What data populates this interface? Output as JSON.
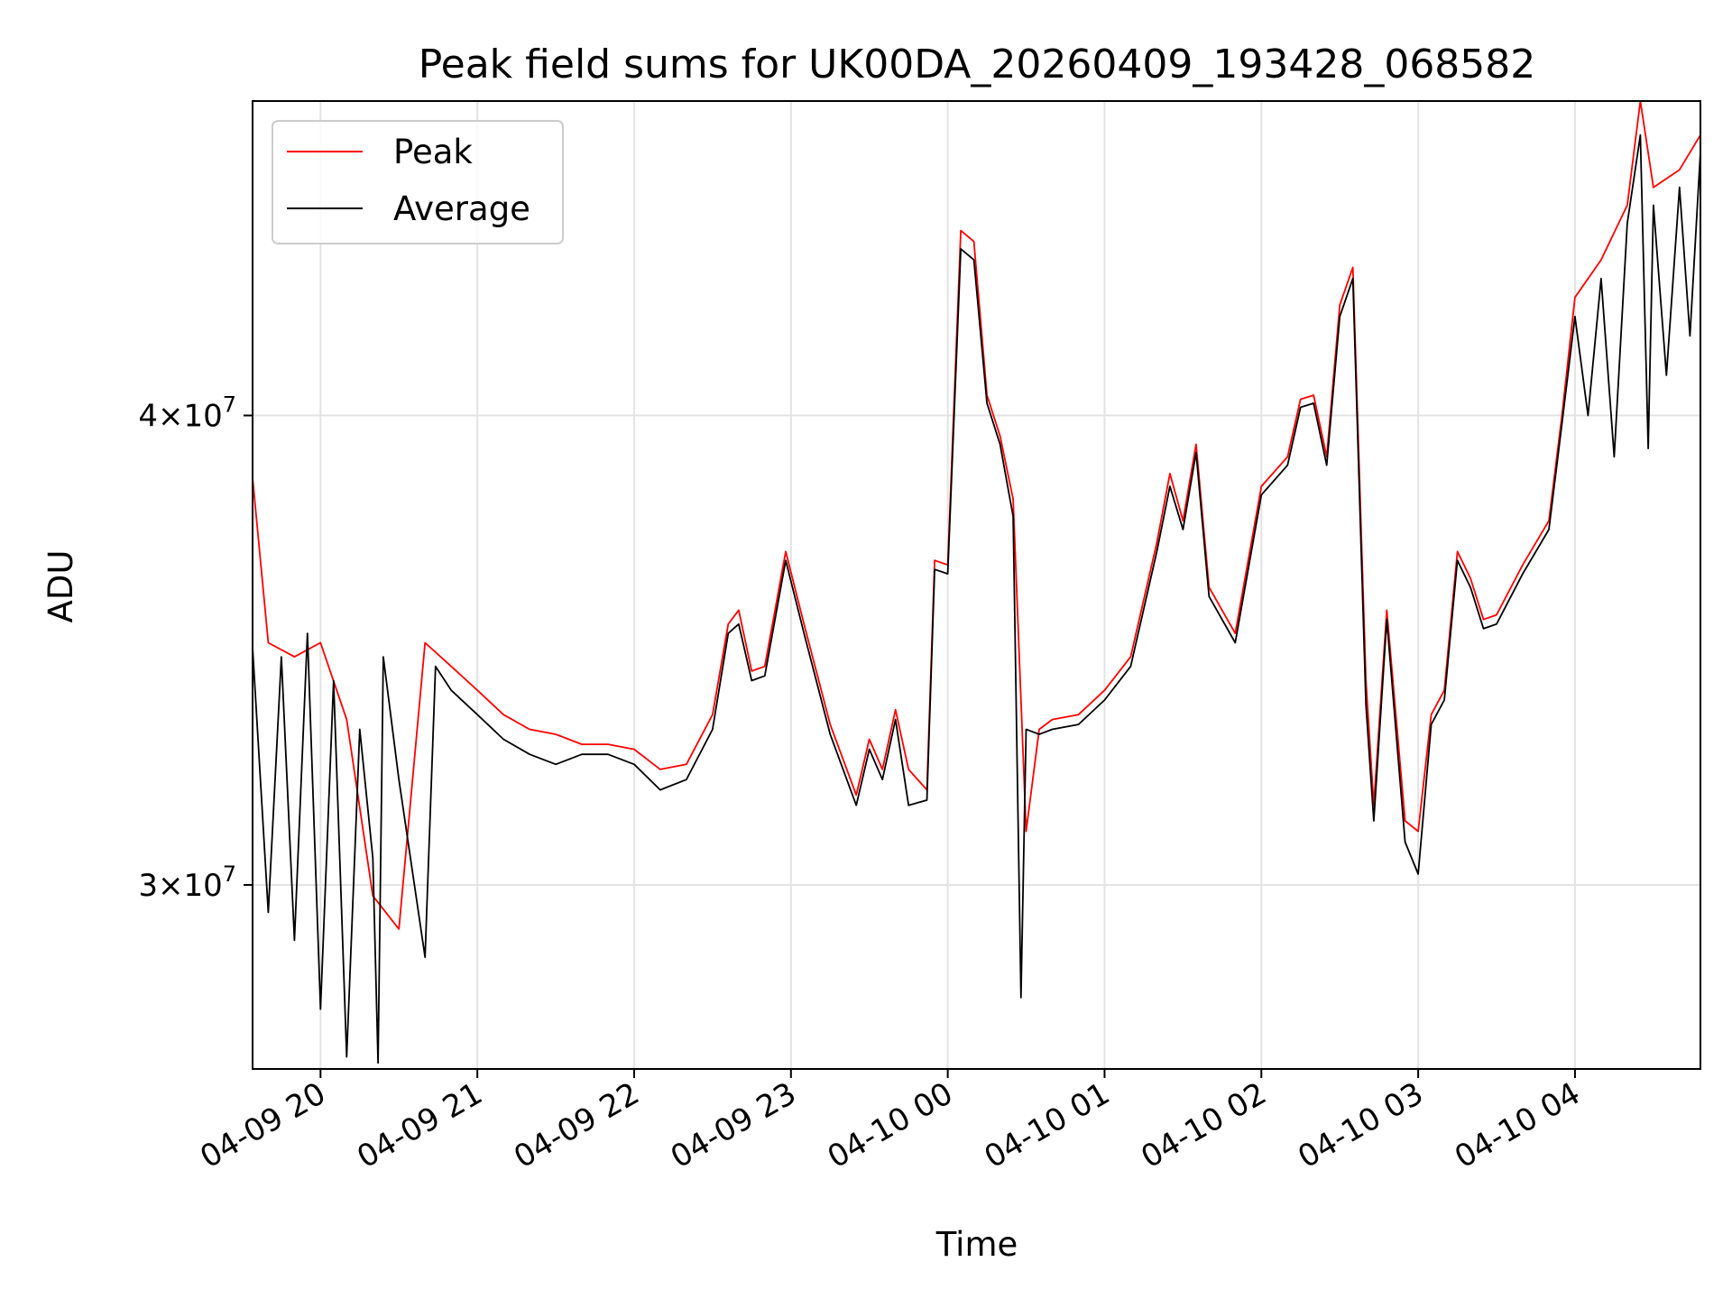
{
  "chart_data": {
    "type": "line",
    "title": "Peak field sums for UK00DA_20260409_193428_068582",
    "xlabel": "Time",
    "ylabel": "ADU",
    "y_scale": "log",
    "ylim": [
      26800000,
      48500000
    ],
    "xlim": [
      "2026-04-09 19:34",
      "2026-04-10 04:48"
    ],
    "grid": true,
    "legend_position": "top-left",
    "x_ticks": [
      {
        "t": "2026-04-09 20:00",
        "label": "04-09 20"
      },
      {
        "t": "2026-04-09 21:00",
        "label": "04-09 21"
      },
      {
        "t": "2026-04-09 22:00",
        "label": "04-09 22"
      },
      {
        "t": "2026-04-09 23:00",
        "label": "04-09 23"
      },
      {
        "t": "2026-04-10 00:00",
        "label": "04-10 00"
      },
      {
        "t": "2026-04-10 01:00",
        "label": "04-10 01"
      },
      {
        "t": "2026-04-10 02:00",
        "label": "04-10 02"
      },
      {
        "t": "2026-04-10 03:00",
        "label": "04-10 03"
      },
      {
        "t": "2026-04-10 04:00",
        "label": "04-10 04"
      }
    ],
    "y_ticks": [
      {
        "v": 30000000,
        "base": "3",
        "exp": "7"
      },
      {
        "v": 40000000,
        "base": "4",
        "exp": "7"
      }
    ],
    "series": [
      {
        "name": "Peak",
        "color": "#ff0000",
        "points": [
          [
            "2026-04-09 19:34",
            38500000
          ],
          [
            "2026-04-09 19:40",
            34800000
          ],
          [
            "2026-04-09 19:50",
            34500000
          ],
          [
            "2026-04-09 20:00",
            34800000
          ],
          [
            "2026-04-09 20:10",
            33200000
          ],
          [
            "2026-04-09 20:20",
            29800000
          ],
          [
            "2026-04-09 20:30",
            29200000
          ],
          [
            "2026-04-09 20:40",
            34800000
          ],
          [
            "2026-04-09 20:50",
            34300000
          ],
          [
            "2026-04-09 21:00",
            33800000
          ],
          [
            "2026-04-09 21:10",
            33300000
          ],
          [
            "2026-04-09 21:20",
            33000000
          ],
          [
            "2026-04-09 21:30",
            32900000
          ],
          [
            "2026-04-09 21:40",
            32700000
          ],
          [
            "2026-04-09 21:50",
            32700000
          ],
          [
            "2026-04-09 22:00",
            32600000
          ],
          [
            "2026-04-09 22:10",
            32200000
          ],
          [
            "2026-04-09 22:20",
            32300000
          ],
          [
            "2026-04-09 22:30",
            33300000
          ],
          [
            "2026-04-09 22:36",
            35200000
          ],
          [
            "2026-04-09 22:40",
            35500000
          ],
          [
            "2026-04-09 22:45",
            34200000
          ],
          [
            "2026-04-09 22:50",
            34300000
          ],
          [
            "2026-04-09 22:58",
            36800000
          ],
          [
            "2026-04-09 23:05",
            35200000
          ],
          [
            "2026-04-09 23:15",
            33100000
          ],
          [
            "2026-04-09 23:25",
            31700000
          ],
          [
            "2026-04-09 23:30",
            32800000
          ],
          [
            "2026-04-09 23:35",
            32200000
          ],
          [
            "2026-04-09 23:40",
            33400000
          ],
          [
            "2026-04-09 23:45",
            32200000
          ],
          [
            "2026-04-09 23:52",
            31800000
          ],
          [
            "2026-04-09 23:55",
            36600000
          ],
          [
            "2026-04-10 00:00",
            36500000
          ],
          [
            "2026-04-10 00:05",
            44800000
          ],
          [
            "2026-04-10 00:10",
            44500000
          ],
          [
            "2026-04-10 00:15",
            40500000
          ],
          [
            "2026-04-10 00:20",
            39500000
          ],
          [
            "2026-04-10 00:25",
            38000000
          ],
          [
            "2026-04-10 00:30",
            31000000
          ],
          [
            "2026-04-10 00:35",
            33000000
          ],
          [
            "2026-04-10 00:40",
            33200000
          ],
          [
            "2026-04-10 00:50",
            33300000
          ],
          [
            "2026-04-10 01:00",
            33800000
          ],
          [
            "2026-04-10 01:10",
            34500000
          ],
          [
            "2026-04-10 01:20",
            37000000
          ],
          [
            "2026-04-10 01:25",
            38600000
          ],
          [
            "2026-04-10 01:30",
            37500000
          ],
          [
            "2026-04-10 01:35",
            39300000
          ],
          [
            "2026-04-10 01:40",
            36000000
          ],
          [
            "2026-04-10 01:50",
            35000000
          ],
          [
            "2026-04-10 02:00",
            38300000
          ],
          [
            "2026-04-10 02:10",
            39000000
          ],
          [
            "2026-04-10 02:15",
            40400000
          ],
          [
            "2026-04-10 02:20",
            40500000
          ],
          [
            "2026-04-10 02:25",
            39000000
          ],
          [
            "2026-04-10 02:30",
            42800000
          ],
          [
            "2026-04-10 02:35",
            43800000
          ],
          [
            "2026-04-10 02:40",
            34000000
          ],
          [
            "2026-04-10 02:43",
            31500000
          ],
          [
            "2026-04-10 02:48",
            35500000
          ],
          [
            "2026-04-10 02:55",
            31200000
          ],
          [
            "2026-04-10 03:00",
            31000000
          ],
          [
            "2026-04-10 03:05",
            33300000
          ],
          [
            "2026-04-10 03:10",
            33800000
          ],
          [
            "2026-04-10 03:15",
            36800000
          ],
          [
            "2026-04-10 03:20",
            36200000
          ],
          [
            "2026-04-10 03:25",
            35300000
          ],
          [
            "2026-04-10 03:30",
            35400000
          ],
          [
            "2026-04-10 03:40",
            36500000
          ],
          [
            "2026-04-10 03:50",
            37500000
          ],
          [
            "2026-04-10 03:55",
            40000000
          ],
          [
            "2026-04-10 04:00",
            43000000
          ],
          [
            "2026-04-10 04:10",
            44000000
          ],
          [
            "2026-04-10 04:20",
            45500000
          ],
          [
            "2026-04-10 04:25",
            48500000
          ],
          [
            "2026-04-10 04:30",
            46000000
          ],
          [
            "2026-04-10 04:40",
            46500000
          ],
          [
            "2026-04-10 04:48",
            47500000
          ]
        ]
      },
      {
        "name": "Average",
        "color": "#000000",
        "points": [
          [
            "2026-04-09 19:34",
            34700000
          ],
          [
            "2026-04-09 19:40",
            29500000
          ],
          [
            "2026-04-09 19:45",
            34500000
          ],
          [
            "2026-04-09 19:50",
            29000000
          ],
          [
            "2026-04-09 19:55",
            35000000
          ],
          [
            "2026-04-09 20:00",
            27800000
          ],
          [
            "2026-04-09 20:05",
            34000000
          ],
          [
            "2026-04-09 20:10",
            27000000
          ],
          [
            "2026-04-09 20:15",
            33000000
          ],
          [
            "2026-04-09 20:20",
            30500000
          ],
          [
            "2026-04-09 20:22",
            26900000
          ],
          [
            "2026-04-09 20:24",
            34500000
          ],
          [
            "2026-04-09 20:30",
            32000000
          ],
          [
            "2026-04-09 20:40",
            28700000
          ],
          [
            "2026-04-09 20:44",
            34300000
          ],
          [
            "2026-04-09 20:50",
            33800000
          ],
          [
            "2026-04-09 21:00",
            33300000
          ],
          [
            "2026-04-09 21:10",
            32800000
          ],
          [
            "2026-04-09 21:20",
            32500000
          ],
          [
            "2026-04-09 21:30",
            32300000
          ],
          [
            "2026-04-09 21:40",
            32500000
          ],
          [
            "2026-04-09 21:50",
            32500000
          ],
          [
            "2026-04-09 22:00",
            32300000
          ],
          [
            "2026-04-09 22:10",
            31800000
          ],
          [
            "2026-04-09 22:20",
            32000000
          ],
          [
            "2026-04-09 22:30",
            33000000
          ],
          [
            "2026-04-09 22:36",
            35000000
          ],
          [
            "2026-04-09 22:40",
            35200000
          ],
          [
            "2026-04-09 22:45",
            34000000
          ],
          [
            "2026-04-09 22:50",
            34100000
          ],
          [
            "2026-04-09 22:58",
            36600000
          ],
          [
            "2026-04-09 23:05",
            35000000
          ],
          [
            "2026-04-09 23:15",
            32900000
          ],
          [
            "2026-04-09 23:25",
            31500000
          ],
          [
            "2026-04-09 23:30",
            32600000
          ],
          [
            "2026-04-09 23:35",
            32000000
          ],
          [
            "2026-04-09 23:40",
            33200000
          ],
          [
            "2026-04-09 23:45",
            31500000
          ],
          [
            "2026-04-09 23:52",
            31600000
          ],
          [
            "2026-04-09 23:55",
            36400000
          ],
          [
            "2026-04-10 00:00",
            36300000
          ],
          [
            "2026-04-10 00:05",
            44300000
          ],
          [
            "2026-04-10 00:10",
            44000000
          ],
          [
            "2026-04-10 00:15",
            40300000
          ],
          [
            "2026-04-10 00:20",
            39300000
          ],
          [
            "2026-04-10 00:25",
            37600000
          ],
          [
            "2026-04-10 00:28",
            28000000
          ],
          [
            "2026-04-10 00:30",
            33000000
          ],
          [
            "2026-04-10 00:35",
            32900000
          ],
          [
            "2026-04-10 00:40",
            33000000
          ],
          [
            "2026-04-10 00:50",
            33100000
          ],
          [
            "2026-04-10 01:00",
            33600000
          ],
          [
            "2026-04-10 01:10",
            34300000
          ],
          [
            "2026-04-10 01:20",
            36800000
          ],
          [
            "2026-04-10 01:25",
            38300000
          ],
          [
            "2026-04-10 01:30",
            37300000
          ],
          [
            "2026-04-10 01:35",
            39100000
          ],
          [
            "2026-04-10 01:40",
            35800000
          ],
          [
            "2026-04-10 01:50",
            34800000
          ],
          [
            "2026-04-10 02:00",
            38100000
          ],
          [
            "2026-04-10 02:10",
            38800000
          ],
          [
            "2026-04-10 02:15",
            40200000
          ],
          [
            "2026-04-10 02:20",
            40300000
          ],
          [
            "2026-04-10 02:25",
            38800000
          ],
          [
            "2026-04-10 02:30",
            42500000
          ],
          [
            "2026-04-10 02:35",
            43500000
          ],
          [
            "2026-04-10 02:40",
            33500000
          ],
          [
            "2026-04-10 02:43",
            31200000
          ],
          [
            "2026-04-10 02:48",
            35300000
          ],
          [
            "2026-04-10 02:55",
            30800000
          ],
          [
            "2026-04-10 03:00",
            30200000
          ],
          [
            "2026-04-10 03:05",
            33100000
          ],
          [
            "2026-04-10 03:10",
            33600000
          ],
          [
            "2026-04-10 03:15",
            36600000
          ],
          [
            "2026-04-10 03:20",
            36000000
          ],
          [
            "2026-04-10 03:25",
            35100000
          ],
          [
            "2026-04-10 03:30",
            35200000
          ],
          [
            "2026-04-10 03:40",
            36300000
          ],
          [
            "2026-04-10 03:50",
            37300000
          ],
          [
            "2026-04-10 03:55",
            39800000
          ],
          [
            "2026-04-10 04:00",
            42500000
          ],
          [
            "2026-04-10 04:05",
            40000000
          ],
          [
            "2026-04-10 04:10",
            43500000
          ],
          [
            "2026-04-10 04:15",
            39000000
          ],
          [
            "2026-04-10 04:20",
            45000000
          ],
          [
            "2026-04-10 04:25",
            47500000
          ],
          [
            "2026-04-10 04:28",
            39200000
          ],
          [
            "2026-04-10 04:30",
            45500000
          ],
          [
            "2026-04-10 04:35",
            41000000
          ],
          [
            "2026-04-10 04:40",
            46000000
          ],
          [
            "2026-04-10 04:44",
            42000000
          ],
          [
            "2026-04-10 04:48",
            47000000
          ]
        ]
      }
    ]
  }
}
